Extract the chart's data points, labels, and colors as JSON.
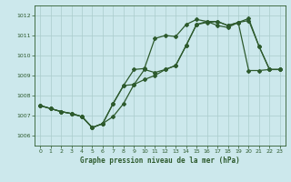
{
  "title": "Graphe pression niveau de la mer (hPa)",
  "background_color": "#cce8ec",
  "grid_color": "#aacccc",
  "line_color": "#2d5a2d",
  "xlim": [
    -0.5,
    23.5
  ],
  "ylim": [
    1005.5,
    1012.5
  ],
  "yticks": [
    1006,
    1007,
    1008,
    1009,
    1010,
    1011,
    1012
  ],
  "xticks": [
    0,
    1,
    2,
    3,
    4,
    5,
    6,
    7,
    8,
    9,
    10,
    11,
    12,
    13,
    14,
    15,
    16,
    17,
    18,
    19,
    20,
    21,
    22,
    23
  ],
  "series1_x": [
    0,
    1,
    2,
    3,
    4,
    5,
    6,
    7,
    8,
    9,
    10,
    11,
    12,
    13,
    14,
    15,
    16,
    17,
    18,
    19,
    20,
    21,
    22,
    23
  ],
  "series1_y": [
    1007.5,
    1007.35,
    1007.2,
    1007.1,
    1006.95,
    1006.4,
    1006.6,
    1006.95,
    1007.6,
    1008.55,
    1009.3,
    1009.15,
    1009.3,
    1009.5,
    1010.5,
    1011.55,
    1011.65,
    1011.7,
    1011.5,
    1011.65,
    1011.75,
    1010.45,
    1009.3,
    1009.3
  ],
  "series2_x": [
    0,
    1,
    2,
    3,
    4,
    5,
    6,
    7,
    8,
    9,
    10,
    11,
    12,
    13,
    14,
    15,
    16,
    17,
    18,
    19,
    20,
    21,
    22,
    23
  ],
  "series2_y": [
    1007.5,
    1007.35,
    1007.2,
    1007.1,
    1006.95,
    1006.4,
    1006.6,
    1007.6,
    1008.5,
    1009.3,
    1009.35,
    1010.85,
    1011.0,
    1010.95,
    1011.55,
    1011.8,
    1011.7,
    1011.5,
    1011.4,
    1011.65,
    1011.85,
    1010.45,
    1009.3,
    1009.3
  ],
  "series3_x": [
    0,
    1,
    2,
    3,
    4,
    5,
    6,
    7,
    8,
    9,
    10,
    11,
    12,
    13,
    14,
    15,
    16,
    17,
    18,
    19,
    20,
    21,
    22,
    23
  ],
  "series3_y": [
    1007.5,
    1007.35,
    1007.2,
    1007.1,
    1006.95,
    1006.4,
    1006.6,
    1007.6,
    1008.5,
    1008.55,
    1008.8,
    1009.0,
    1009.3,
    1009.5,
    1010.5,
    1011.55,
    1011.7,
    1011.7,
    1011.5,
    1011.65,
    1009.25,
    1009.25,
    1009.3,
    1009.3
  ]
}
